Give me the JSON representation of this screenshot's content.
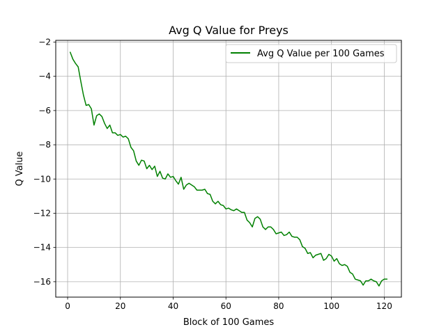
{
  "chart_data": {
    "type": "line",
    "title": "Avg Q Value for Preys",
    "xlabel": "Block of 100 Games",
    "ylabel": "Q Value",
    "xlim": [
      -4.5,
      126.5
    ],
    "ylim": [
      -16.9,
      -1.9
    ],
    "xticks": [
      0,
      20,
      40,
      60,
      80,
      100,
      120
    ],
    "yticks": [
      -16,
      -14,
      -12,
      -10,
      -8,
      -6,
      -4,
      -2
    ],
    "grid": true,
    "legend_position": "top-right",
    "series": [
      {
        "name": "Avg Q Value per 100 Games",
        "color": "#008000",
        "x": [
          1,
          2,
          3,
          4,
          5,
          6,
          7,
          8,
          9,
          10,
          11,
          12,
          13,
          14,
          15,
          16,
          17,
          18,
          19,
          20,
          21,
          22,
          23,
          24,
          25,
          26,
          27,
          28,
          29,
          30,
          31,
          32,
          33,
          34,
          35,
          36,
          37,
          38,
          39,
          40,
          41,
          42,
          43,
          44,
          45,
          46,
          47,
          48,
          49,
          50,
          51,
          52,
          53,
          54,
          55,
          56,
          57,
          58,
          59,
          60,
          61,
          62,
          63,
          64,
          65,
          66,
          67,
          68,
          69,
          70,
          71,
          72,
          73,
          74,
          75,
          76,
          77,
          78,
          79,
          80,
          81,
          82,
          83,
          84,
          85,
          86,
          87,
          88,
          89,
          90,
          91,
          92,
          93,
          94,
          95,
          96,
          97,
          98,
          99,
          100,
          101,
          102,
          103,
          104,
          105,
          106,
          107,
          108,
          109,
          110,
          111,
          112,
          113,
          114,
          115,
          116,
          117,
          118,
          119,
          120,
          121
        ],
        "values": [
          -2.6,
          -3.0,
          -3.25,
          -3.45,
          -4.3,
          -5.1,
          -5.7,
          -5.65,
          -5.9,
          -6.85,
          -6.3,
          -6.2,
          -6.35,
          -6.75,
          -7.05,
          -6.85,
          -7.3,
          -7.3,
          -7.45,
          -7.4,
          -7.55,
          -7.5,
          -7.65,
          -8.15,
          -8.35,
          -8.95,
          -9.2,
          -8.9,
          -8.95,
          -9.4,
          -9.2,
          -9.45,
          -9.25,
          -9.85,
          -9.55,
          -9.95,
          -10.0,
          -9.7,
          -9.9,
          -9.85,
          -10.1,
          -10.3,
          -9.9,
          -10.6,
          -10.35,
          -10.25,
          -10.35,
          -10.45,
          -10.65,
          -10.65,
          -10.65,
          -10.6,
          -10.85,
          -10.9,
          -11.3,
          -11.45,
          -11.3,
          -11.5,
          -11.55,
          -11.75,
          -11.7,
          -11.8,
          -11.85,
          -11.75,
          -11.85,
          -11.95,
          -11.95,
          -12.4,
          -12.55,
          -12.8,
          -12.3,
          -12.2,
          -12.35,
          -12.8,
          -12.95,
          -12.8,
          -12.8,
          -12.95,
          -13.2,
          -13.15,
          -13.1,
          -13.3,
          -13.25,
          -13.1,
          -13.35,
          -13.4,
          -13.4,
          -13.55,
          -13.95,
          -14.05,
          -14.35,
          -14.3,
          -14.6,
          -14.45,
          -14.4,
          -14.35,
          -14.75,
          -14.65,
          -14.4,
          -14.5,
          -14.8,
          -14.65,
          -14.95,
          -15.05,
          -15.0,
          -15.1,
          -15.45,
          -15.55,
          -15.85,
          -15.9,
          -15.95,
          -16.2,
          -15.95,
          -15.95,
          -15.85,
          -15.95,
          -16.0,
          -16.25,
          -15.95,
          -15.85,
          -15.85
        ]
      }
    ]
  }
}
